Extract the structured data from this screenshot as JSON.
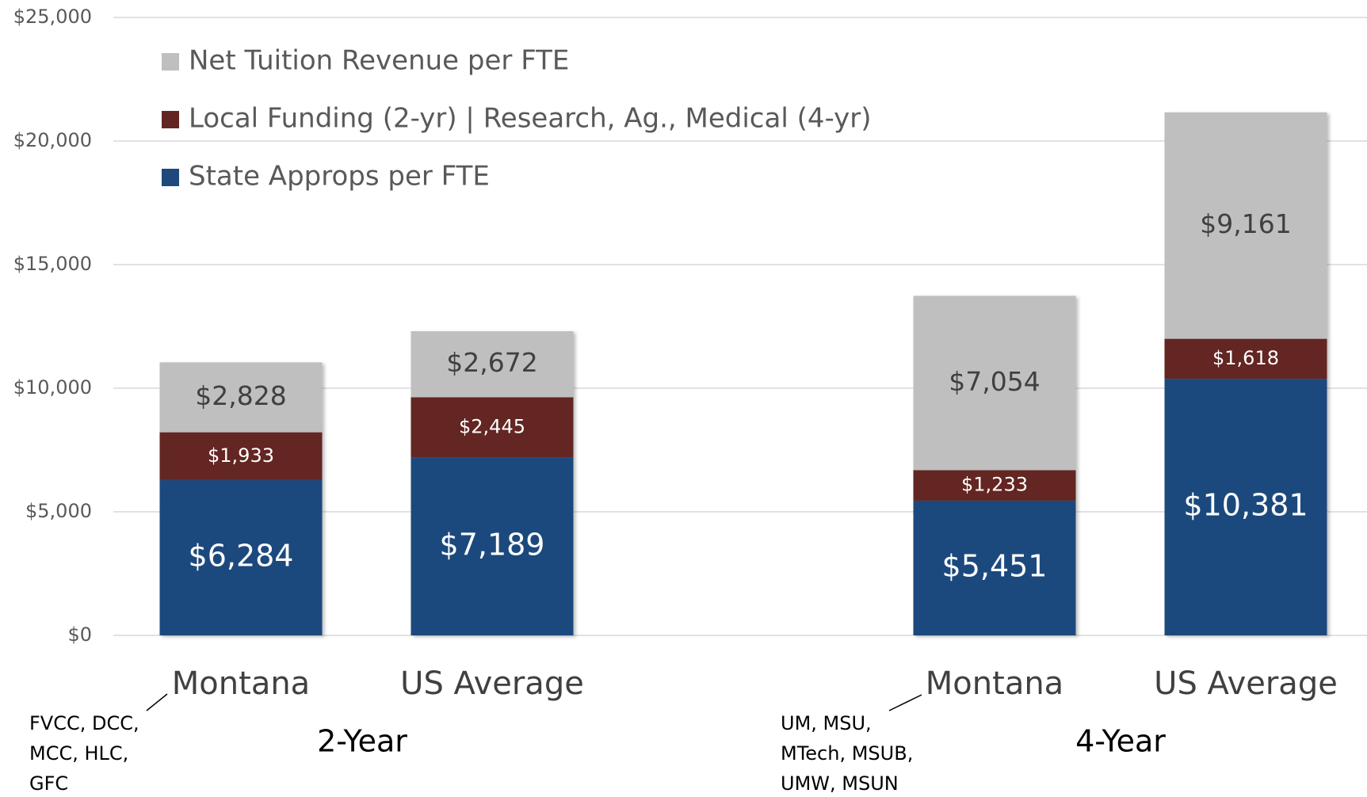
{
  "chart_data": {
    "type": "stacked_bar",
    "categories": [
      "Montana",
      "US Average",
      "Montana",
      "US Average"
    ],
    "group_labels": [
      "2-Year",
      "4-Year"
    ],
    "annotations": [
      [
        "FVCC, DCC,",
        "MCC, HLC,",
        "GFC"
      ],
      [
        "UM, MSU,",
        "MTech, MSUB,",
        "UMW, MSUN"
      ]
    ],
    "series": [
      {
        "name": "State Approps per FTE",
        "color": "#1f497d",
        "values": [
          6284,
          7189,
          5451,
          10381
        ],
        "value_labels": [
          "$6,284",
          "$7,189",
          "$5,451",
          "$10,381"
        ]
      },
      {
        "name": "Local Funding (2-yr) | Research, Ag., Medical (4-yr)",
        "color": "#632523",
        "values": [
          1933,
          2445,
          1233,
          1618
        ],
        "value_labels": [
          "$1,933",
          "$2,445",
          "$1,233",
          "$1,618"
        ]
      },
      {
        "name": "Net Tuition Revenue per FTE",
        "color": "#bfbfbf",
        "values": [
          2828,
          2672,
          7054,
          9161
        ],
        "value_labels": [
          "$2,828",
          "$2,672",
          "$7,054",
          "$9,161"
        ]
      }
    ],
    "ylim": [
      0,
      25000
    ],
    "yticks": [
      {
        "value": 0,
        "label": "$0"
      },
      {
        "value": 5000,
        "label": "$5,000"
      },
      {
        "value": 10000,
        "label": "$10,000"
      },
      {
        "value": 15000,
        "label": "$15,000"
      },
      {
        "value": 20000,
        "label": "$20,000"
      },
      {
        "value": 25000,
        "label": "$25,000"
      }
    ],
    "grid": true,
    "legend": "top-left"
  }
}
